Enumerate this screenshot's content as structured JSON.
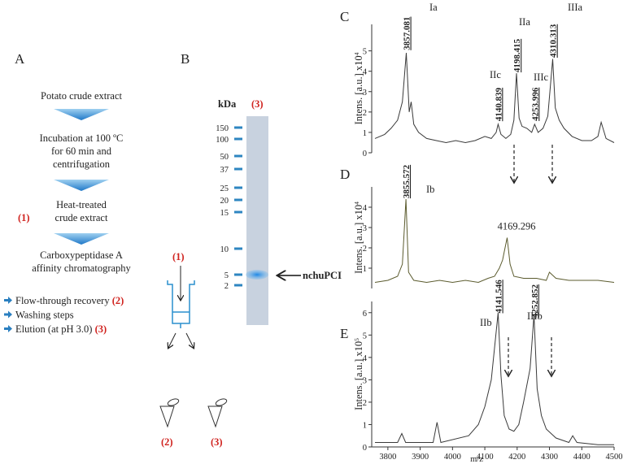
{
  "panel_a": {
    "label": "A",
    "steps": [
      "Potato crude extract",
      "Incubation at 100 ºC",
      "for 60 min and",
      "centrifugation",
      "Heat-treated",
      "crude extract",
      "Carboxypeptidase A",
      "affinity chromatography"
    ],
    "step_marker": "(1)",
    "bullets": [
      {
        "text": "Flow-through recovery",
        "tag": "(2)"
      },
      {
        "text": "Washing steps"
      },
      {
        "text": "Elution (at pH 3.0)",
        "tag": "(3)"
      }
    ]
  },
  "panel_b": {
    "label": "B",
    "unit": "kDa",
    "lane": "(3)",
    "markers": [
      150,
      100,
      50,
      37,
      25,
      20,
      15,
      10,
      5,
      2
    ],
    "band_label": "nchuPCI",
    "column_input": "(1)",
    "tubes": [
      "(2)",
      "(3)"
    ]
  },
  "chart_data": [
    {
      "type": "line",
      "panel": "C",
      "ylabel": "Intens. [a.u.] x10",
      "ylabel_exponent": "4",
      "x": [
        3760,
        3790,
        3810,
        3830,
        3845,
        3857,
        3866,
        3872,
        3880,
        3895,
        3920,
        3950,
        3980,
        4010,
        4040,
        4070,
        4100,
        4120,
        4135,
        4141,
        4150,
        4165,
        4180,
        4190,
        4198,
        4206,
        4215,
        4230,
        4245,
        4254,
        4265,
        4280,
        4295,
        4310,
        4318,
        4330,
        4345,
        4370,
        4400,
        4430,
        4450,
        4460,
        4475,
        4500
      ],
      "series": [
        {
          "color": "#3a3a3a",
          "values": [
            0.7,
            0.9,
            1.2,
            1.6,
            2.5,
            4.9,
            2.0,
            2.5,
            1.4,
            1.0,
            0.7,
            0.6,
            0.5,
            0.6,
            0.5,
            0.6,
            0.8,
            0.7,
            1.0,
            1.4,
            0.9,
            0.7,
            0.9,
            1.6,
            3.9,
            1.7,
            1.3,
            1.2,
            1.0,
            1.4,
            1.0,
            1.2,
            1.8,
            4.6,
            2.2,
            1.6,
            1.2,
            0.8,
            0.6,
            0.6,
            0.8,
            1.5,
            0.7,
            0.5
          ]
        }
      ],
      "xlim": [
        3750,
        4500
      ],
      "ylim": [
        0,
        6.3
      ],
      "yticks": [
        0,
        1,
        2,
        3,
        4,
        5
      ],
      "peak_labels": [
        "3857.081",
        "4140.839",
        "4198.415",
        "4253.996",
        "4310.313"
      ],
      "annotations": [
        "Ia",
        "IIa",
        "IIIa",
        "IIc",
        "IIIc"
      ]
    },
    {
      "type": "line",
      "panel": "D",
      "ylabel": "Intens. [a.u.] x10",
      "ylabel_exponent": "4",
      "x": [
        3760,
        3800,
        3830,
        3845,
        3856,
        3864,
        3880,
        3920,
        3960,
        4000,
        4040,
        4080,
        4110,
        4130,
        4145,
        4155,
        4160,
        4169,
        4178,
        4190,
        4220,
        4260,
        4290,
        4300,
        4320,
        4360,
        4400,
        4450,
        4500
      ],
      "series": [
        {
          "color": "#5b5b2e",
          "values": [
            0.3,
            0.4,
            0.6,
            1.2,
            4.4,
            0.8,
            0.4,
            0.3,
            0.4,
            0.3,
            0.4,
            0.3,
            0.5,
            0.6,
            1.0,
            1.4,
            1.8,
            2.5,
            1.2,
            0.6,
            0.5,
            0.5,
            0.4,
            0.8,
            0.5,
            0.4,
            0.4,
            0.4,
            0.3
          ]
        }
      ],
      "xlim": [
        3750,
        4500
      ],
      "ylim": [
        0,
        5
      ],
      "yticks": [
        1,
        2,
        3,
        4
      ],
      "peak_labels": [
        "3855.572",
        "4169.296"
      ],
      "annotations": [
        "Ib"
      ]
    },
    {
      "type": "line",
      "panel": "E",
      "ylabel": "Intens. [a.u.] x10",
      "ylabel_exponent": "5",
      "xlabel": "m/z",
      "x": [
        3760,
        3830,
        3843,
        3855,
        3940,
        3952,
        3964,
        4050,
        4080,
        4100,
        4120,
        4141,
        4150,
        4160,
        4175,
        4190,
        4205,
        4220,
        4240,
        4252,
        4262,
        4275,
        4290,
        4320,
        4360,
        4372,
        4385,
        4450,
        4500
      ],
      "series": [
        {
          "color": "#3a3a3a",
          "values": [
            0.2,
            0.2,
            0.6,
            0.2,
            0.2,
            1.1,
            0.2,
            0.5,
            1.0,
            1.8,
            3.0,
            6.0,
            3.2,
            1.4,
            0.8,
            0.7,
            1.0,
            2.0,
            3.5,
            5.9,
            2.6,
            1.4,
            0.8,
            0.4,
            0.2,
            0.5,
            0.2,
            0.1,
            0.1
          ]
        }
      ],
      "xlim": [
        3750,
        4500
      ],
      "ylim": [
        0,
        6.5
      ],
      "yticks": [
        0,
        1,
        2,
        3,
        4,
        5,
        6
      ],
      "xticks": [
        3800,
        3900,
        4000,
        4100,
        4200,
        4300,
        4400,
        4500
      ],
      "peak_labels": [
        "4141.546",
        "4252.852"
      ],
      "annotations": [
        "IIb",
        "IIIb"
      ]
    }
  ]
}
